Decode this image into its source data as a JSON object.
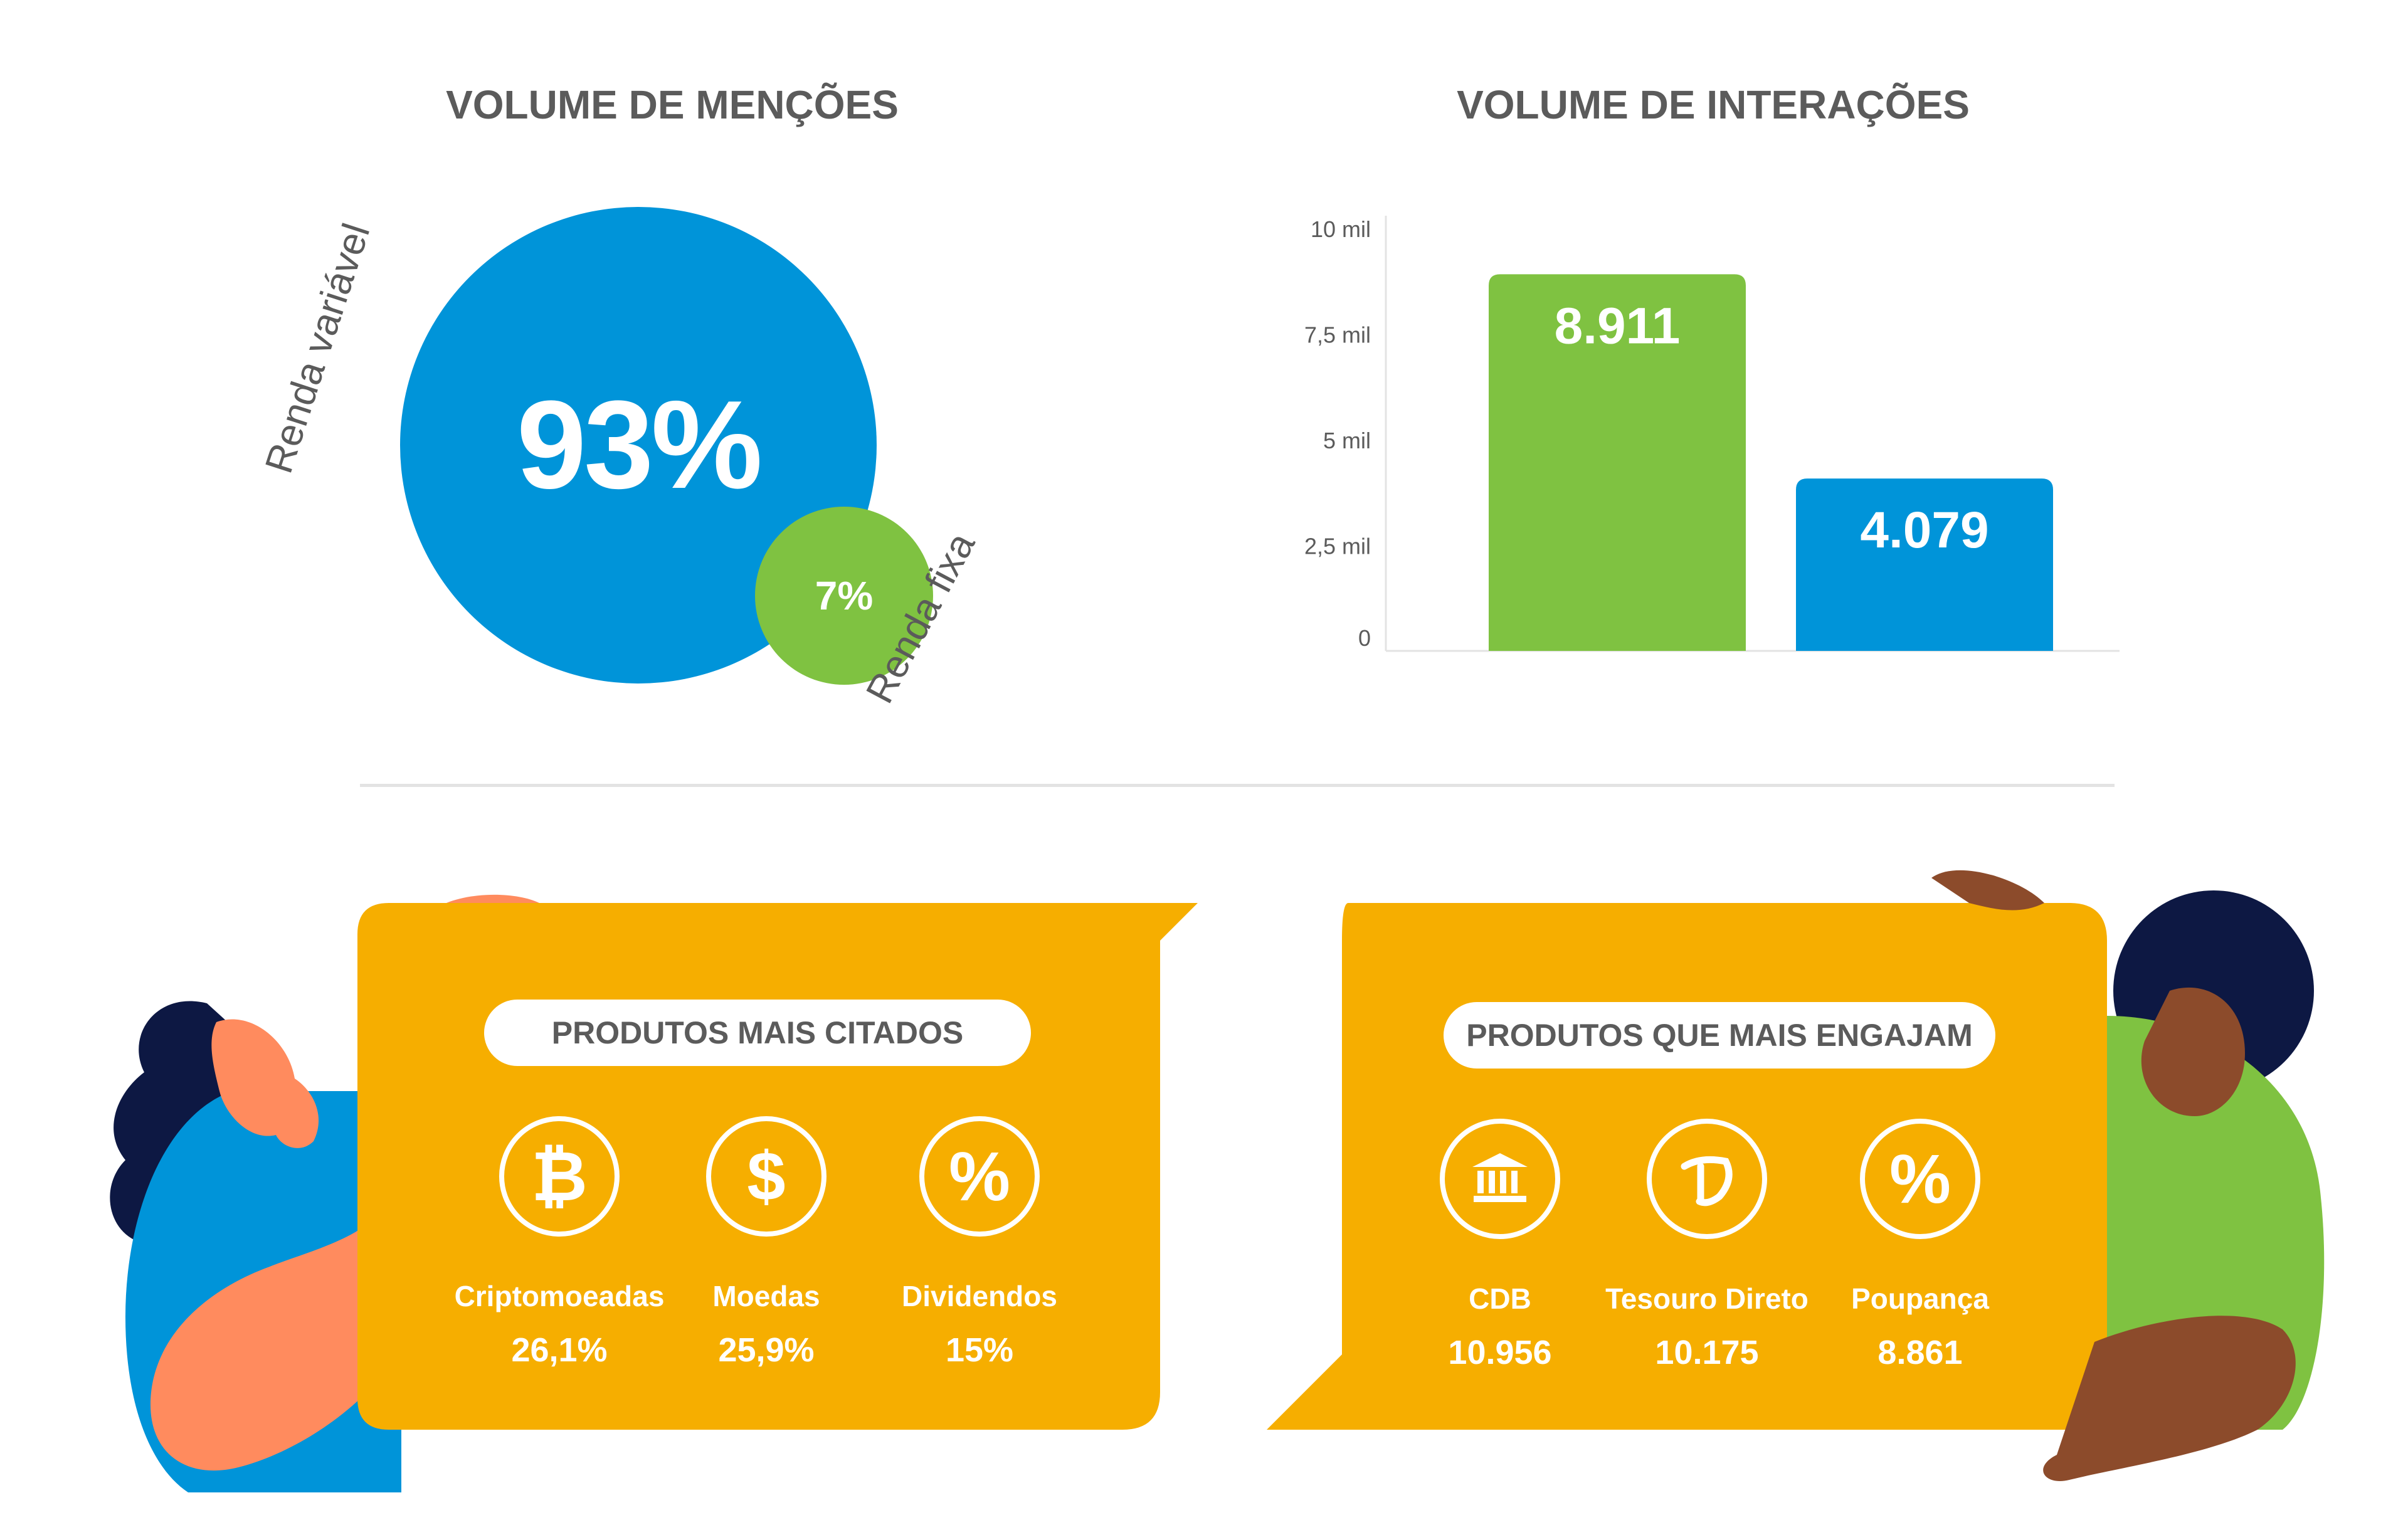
{
  "mentions": {
    "title": "VOLUME DE MENÇÕES",
    "big_value": "93%",
    "big_label": "Renda variável",
    "small_value": "7%",
    "small_label": "Renda fixa"
  },
  "interactions": {
    "title": "VOLUME DE INTERAÇÕES"
  },
  "chart_data": [
    {
      "type": "pie",
      "title": "VOLUME DE MENÇÕES",
      "categories": [
        "Renda variável",
        "Renda fixa"
      ],
      "values": [
        93,
        7
      ],
      "colors": [
        "#0094d9",
        "#7fc241"
      ]
    },
    {
      "type": "bar",
      "title": "VOLUME DE INTERAÇÕES",
      "categories": [
        "",
        ""
      ],
      "values": [
        8911,
        4079
      ],
      "value_labels": [
        "8.911",
        "4.079"
      ],
      "colors": [
        "#7fc241",
        "#0094d9"
      ],
      "ylim": [
        0,
        10000
      ],
      "yticks": [
        0,
        2500,
        5000,
        7500,
        10000
      ],
      "ytick_labels": [
        "0",
        "2,5 mil",
        "5 mil",
        "7,5 mil",
        "10 mil"
      ]
    }
  ],
  "cited": {
    "title": "PRODUTOS MAIS CITADOS",
    "items": [
      {
        "icon": "bitcoin-icon",
        "symbol": "₿",
        "name": "Criptomoeadas",
        "value": "26,1%"
      },
      {
        "icon": "dollar-icon",
        "symbol": "$",
        "name": "Moedas",
        "value": "25,9%"
      },
      {
        "icon": "percent-icon",
        "symbol": "%",
        "name": "Dividendos",
        "value": "15%"
      }
    ]
  },
  "engaging": {
    "title": "PRODUTOS QUE MAIS ENGAJAM",
    "items": [
      {
        "icon": "bank-icon",
        "symbol": "",
        "name": "CDB",
        "value": "10.956"
      },
      {
        "icon": "tesouro-direto-icon",
        "symbol": "",
        "name": "Tesouro Direto",
        "value": "10.175"
      },
      {
        "icon": "percent-icon",
        "symbol": "%",
        "name": "Poupança",
        "value": "8.861"
      }
    ]
  },
  "colors": {
    "blue": "#0094d9",
    "green": "#7fc241",
    "yellow": "#f6ae00",
    "text": "#5b5b5b"
  }
}
